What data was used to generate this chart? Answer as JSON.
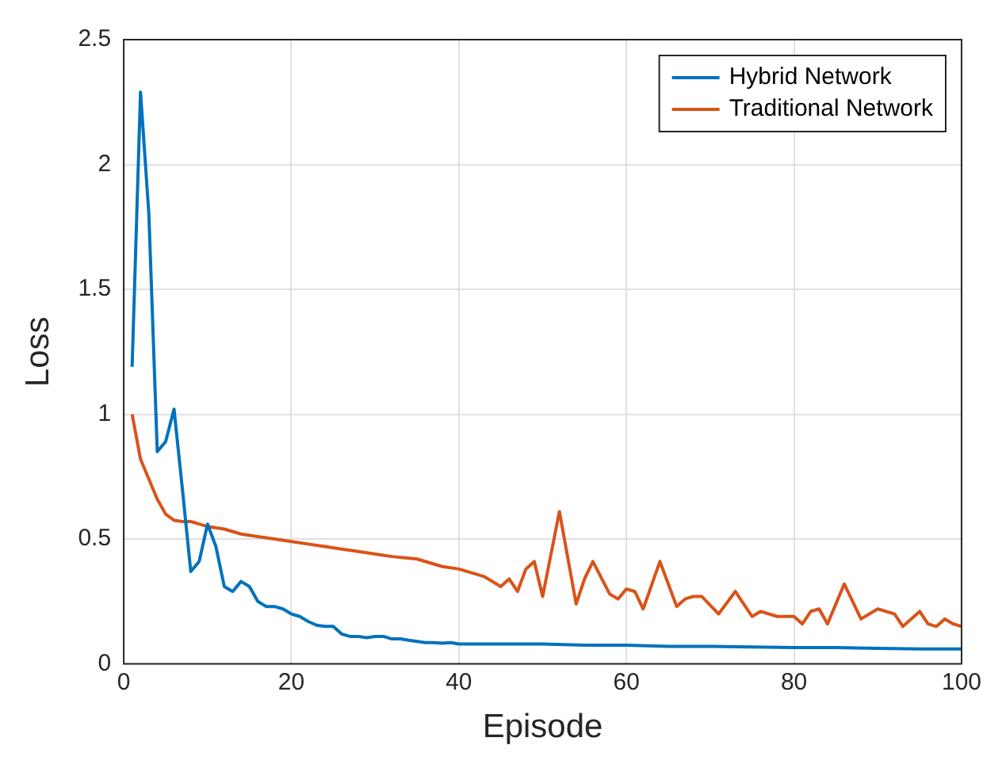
{
  "chart_data": {
    "type": "line",
    "xlabel": "Episode",
    "ylabel": "Loss",
    "xlim": [
      0,
      100
    ],
    "xticks": [
      0,
      20,
      40,
      60,
      80,
      100
    ],
    "ylim": [
      0,
      2.5
    ],
    "yticks": [
      0,
      0.5,
      1,
      1.5,
      2,
      2.5
    ],
    "grid": true,
    "legend": "top right",
    "marker": "none",
    "line_style": "solid",
    "series": [
      {
        "name": "Hybrid Network",
        "color": "#0072bd",
        "x": [
          1,
          2,
          3,
          4,
          5,
          6,
          7,
          8,
          9,
          10,
          11,
          12,
          13,
          14,
          15,
          16,
          17,
          18,
          19,
          20,
          21,
          22,
          23,
          24,
          25,
          26,
          27,
          28,
          29,
          30,
          31,
          32,
          33,
          34,
          35,
          36,
          37,
          38,
          39,
          40,
          45,
          50,
          55,
          60,
          65,
          70,
          75,
          80,
          85,
          90,
          95,
          100
        ],
        "values": [
          1.19,
          2.29,
          1.8,
          0.85,
          0.89,
          1.02,
          0.7,
          0.37,
          0.41,
          0.56,
          0.47,
          0.31,
          0.29,
          0.33,
          0.31,
          0.25,
          0.23,
          0.23,
          0.22,
          0.2,
          0.19,
          0.17,
          0.155,
          0.15,
          0.15,
          0.12,
          0.11,
          0.11,
          0.105,
          0.11,
          0.11,
          0.1,
          0.1,
          0.095,
          0.09,
          0.085,
          0.085,
          0.083,
          0.085,
          0.08,
          0.08,
          0.08,
          0.075,
          0.075,
          0.07,
          0.07,
          0.068,
          0.065,
          0.065,
          0.062,
          0.06,
          0.06
        ]
      },
      {
        "name": "Traditional Network",
        "color": "#d95319",
        "x": [
          1,
          2,
          3,
          4,
          5,
          6,
          7,
          8,
          9,
          10,
          12,
          14,
          16,
          18,
          20,
          22,
          24,
          26,
          28,
          30,
          32,
          35,
          38,
          40,
          43,
          45,
          46,
          47,
          48,
          49,
          50,
          52,
          54,
          55,
          56,
          58,
          59,
          60,
          61,
          62,
          64,
          66,
          67,
          68,
          69,
          71,
          73,
          75,
          76,
          78,
          80,
          81,
          82,
          83,
          84,
          86,
          88,
          90,
          92,
          93,
          95,
          96,
          97,
          98,
          99,
          100
        ],
        "values": [
          1.0,
          0.82,
          0.74,
          0.66,
          0.6,
          0.575,
          0.57,
          0.57,
          0.56,
          0.55,
          0.54,
          0.52,
          0.51,
          0.5,
          0.49,
          0.48,
          0.47,
          0.46,
          0.45,
          0.44,
          0.43,
          0.42,
          0.39,
          0.38,
          0.35,
          0.31,
          0.34,
          0.29,
          0.38,
          0.41,
          0.27,
          0.61,
          0.24,
          0.34,
          0.41,
          0.28,
          0.26,
          0.3,
          0.29,
          0.22,
          0.41,
          0.23,
          0.26,
          0.27,
          0.27,
          0.2,
          0.29,
          0.19,
          0.21,
          0.19,
          0.19,
          0.16,
          0.21,
          0.22,
          0.16,
          0.32,
          0.18,
          0.22,
          0.2,
          0.15,
          0.21,
          0.16,
          0.15,
          0.18,
          0.16,
          0.15
        ]
      }
    ]
  }
}
